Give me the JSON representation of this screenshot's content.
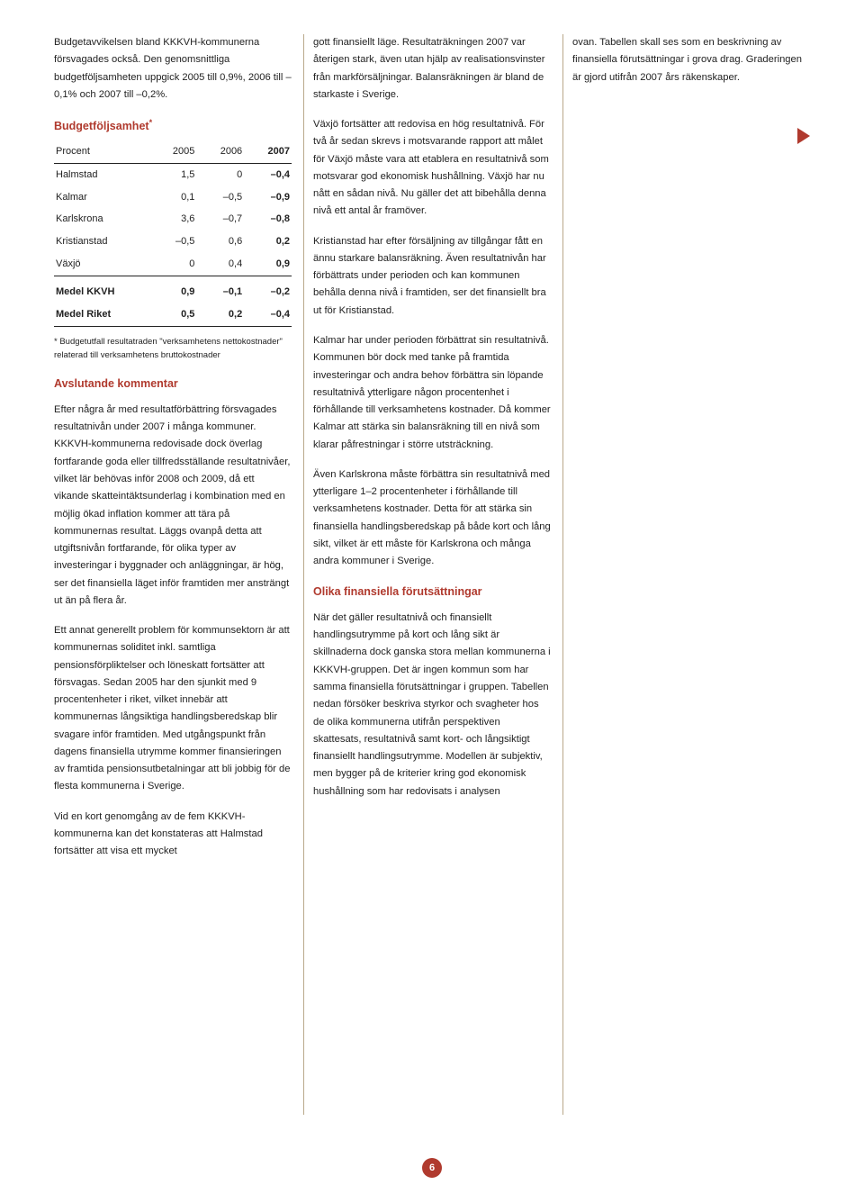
{
  "page_number": "6",
  "colors": {
    "accent": "#b03a2e",
    "divider": "#b9a88a",
    "text": "#222222",
    "background": "#ffffff"
  },
  "col1": {
    "intro": "Budgetavvikelsen bland KKKVH-kommunerna försvagades också. Den genomsnittliga budgetföljsamheten uppgick 2005 till 0,9%, 2006 till –0,1% och 2007 till –0,2%.",
    "table_title": "Budgetföljsamhet",
    "table_title_sup": "*",
    "table": {
      "type": "table",
      "columns": [
        "Procent",
        "2005",
        "2006",
        "2007"
      ],
      "rows": [
        [
          "Halmstad",
          "1,5",
          "0",
          "–0,4"
        ],
        [
          "Kalmar",
          "0,1",
          "–0,5",
          "–0,9"
        ],
        [
          "Karlskrona",
          "3,6",
          "–0,7",
          "–0,8"
        ],
        [
          "Kristianstad",
          "–0,5",
          "0,6",
          "0,2"
        ],
        [
          "Växjö",
          "0",
          "0,4",
          "0,9"
        ]
      ],
      "medel_rows": [
        [
          "Medel KKVH",
          "0,9",
          "–0,1",
          "–0,2"
        ],
        [
          "Medel Riket",
          "0,5",
          "0,2",
          "–0,4"
        ]
      ],
      "col_widths": [
        "40%",
        "20%",
        "20%",
        "20%"
      ],
      "font_size": 11
    },
    "footnote": "* Budgetutfall resultatraden \"verksamhetens nettokostnader\" relaterad till verksamhetens bruttokostnader",
    "h_avslutande": "Avslutande kommentar",
    "p_avslut1": "Efter några år med resultatförbättring försvagades resultatnivån under 2007 i många kommuner. KKKVH-kommunerna redovisade dock överlag fortfarande goda eller tillfredsställande resultatnivåer, vilket lär behövas inför 2008 och 2009, då ett vikande skatteintäktsunderlag i kombination med en möjlig ökad inflation kommer att tära på kommunernas resultat. Läggs ovanpå detta att utgiftsnivån fortfarande, för olika typer av investeringar i byggnader och anläggningar, är hög, ser det finansiella läget inför framtiden mer ansträngt ut än på flera år.",
    "p_avslut2": "Ett annat generellt problem för kommunsektorn är att kommunernas soliditet inkl. samtliga pensionsförpliktelser och löneskatt fortsätter att försvagas. Sedan 2005 har den sjunkit med 9 procentenheter i riket, vilket innebär att kommunernas långsiktiga handlingsberedskap blir svagare inför framtiden. Med utgångspunkt från dagens finansiella utrymme kommer finansieringen av framtida pensionsutbetalningar att bli jobbig för de flesta kommunerna i Sverige.",
    "p_avslut3": "Vid en kort genomgång av de fem KKKVH-kommunerna kan det konstateras att Halmstad fortsätter att visa ett mycket"
  },
  "col2": {
    "p1": "gott finansiellt läge. Resultaträkningen 2007 var återigen stark, även utan hjälp av realisationsvinster från markförsäljningar. Balansräkningen är bland de starkaste i Sverige.",
    "p2": "Växjö fortsätter att redovisa en hög resultatnivå. För två år sedan skrevs i motsvarande rapport att målet för Växjö måste vara att etablera en resultatnivå som motsvarar god ekonomisk hushållning. Växjö har nu nått en sådan nivå. Nu gäller det att bibehålla denna nivå ett antal år framöver.",
    "p3": "Kristianstad har efter försäljning av tillgångar fått en ännu starkare balansräkning. Även resultatnivån har förbättrats under perioden och kan kommunen behålla denna nivå i framtiden, ser det finansiellt bra ut för Kristianstad.",
    "p4": "Kalmar har under perioden förbättrat sin resultatnivå. Kommunen bör dock med tanke på framtida investeringar och andra behov förbättra sin löpande resultatnivå ytterligare någon procentenhet i förhållande till verksamhetens kostnader. Då kommer Kalmar att stärka sin balansräkning till en nivå som klarar påfrestningar i större utsträckning.",
    "p5": "Även Karlskrona måste förbättra sin resultatnivå med ytterligare 1–2 procentenheter i förhållande till verksamhetens kostnader. Detta för att stärka sin finansiella handlingsberedskap på både kort och lång sikt, vilket är ett måste för Karlskrona och många andra kommuner i Sverige.",
    "h_olika": "Olika finansiella förutsättningar",
    "p6": "När det gäller resultatnivå och finansiellt handlingsutrymme på kort och lång sikt är skillnaderna dock ganska stora mellan kommunerna i KKKVH-gruppen. Det är ingen kommun som har samma finansiella förutsättningar i gruppen. Tabellen nedan försöker beskriva styrkor och svagheter hos de olika kommunerna utifrån perspektiven skattesats, resultatnivå samt kort- och långsiktigt finansiellt handlingsutrymme. Modellen är subjektiv, men bygger på de kriterier kring god ekonomisk hushållning som har redovisats i analysen"
  },
  "col3": {
    "p1": "ovan. Tabellen skall ses som en beskrivning av finansiella förutsättningar i grova drag. Graderingen är gjord utifrån 2007 års räkenskaper."
  }
}
